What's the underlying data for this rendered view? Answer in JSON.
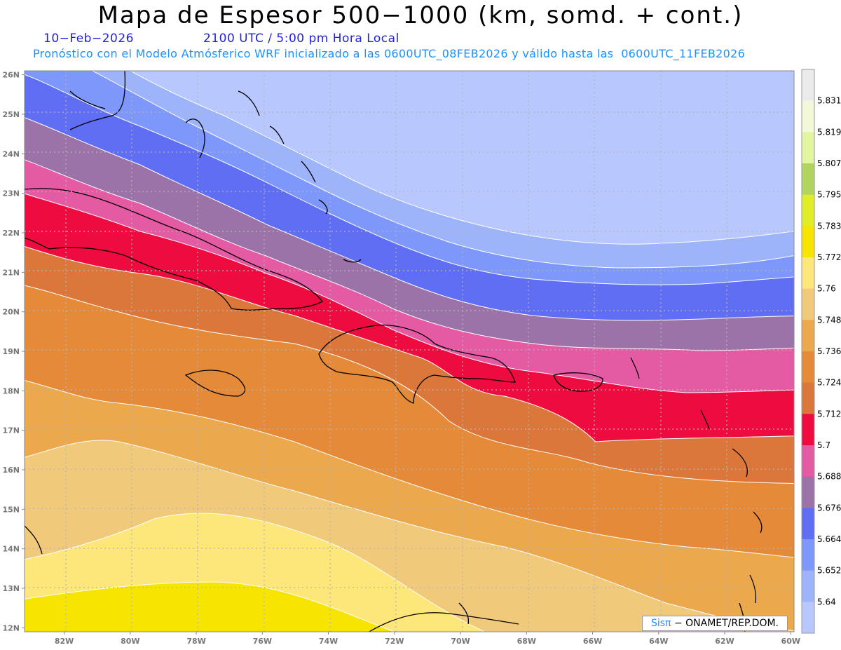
{
  "header": {
    "title": "Mapa de Espesor 500−1000 (km, somd. + cont.)",
    "date": "10−Feb−2026",
    "time": "2100 UTC / 5:00 pm Hora Local",
    "model_info": "Pronóstico con el Modelo Atmósferico WRF inicializado a las 0600UTC_08FEB2026 y válido hasta las  0600UTC_11FEB2026"
  },
  "credit": {
    "sis": "Sisπ",
    "rest": "− ONAMET/REP.DOM."
  },
  "map": {
    "lon_labels": [
      "82W",
      "80W",
      "78W",
      "76W",
      "74W",
      "72W",
      "70W",
      "68W",
      "66W",
      "64W",
      "62W",
      "60W"
    ],
    "lat_labels": [
      "26N",
      "25N",
      "24N",
      "23N",
      "22N",
      "21N",
      "20N",
      "19N",
      "18N",
      "17N",
      "16N",
      "15N",
      "14N",
      "13N",
      "12N"
    ],
    "lon_range": [
      -83.2,
      -59.9
    ],
    "lat_range": [
      11.9,
      26.1
    ]
  },
  "colorbar": {
    "labels": [
      "5.831",
      "5.819",
      "5.807",
      "5.795",
      "5.783",
      "5.772",
      "5.76",
      "5.748",
      "5.736",
      "5.724",
      "5.712",
      "5.7",
      "5.688",
      "5.676",
      "5.664",
      "5.652",
      "5.64"
    ],
    "colors": [
      "#ebebeb",
      "#f3f8d8",
      "#e2f5a0",
      "#b0d45e",
      "#dfee28",
      "#f7e400",
      "#fde67a",
      "#f0c97a",
      "#eba84d",
      "#e48a38",
      "#dc773b",
      "#ee0b3f",
      "#e45aa3",
      "#9b73a9",
      "#5f6ef2",
      "#7e97fa",
      "#9db4fb",
      "#b8c7fe"
    ]
  }
}
